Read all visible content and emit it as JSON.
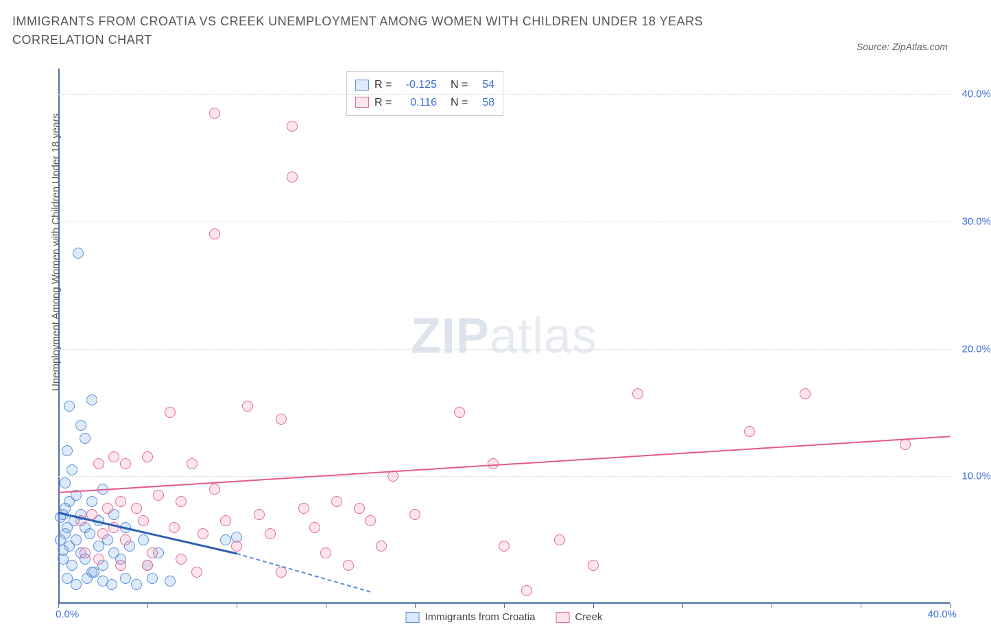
{
  "title": "IMMIGRANTS FROM CROATIA VS CREEK UNEMPLOYMENT AMONG WOMEN WITH CHILDREN UNDER 18 YEARS CORRELATION CHART",
  "source": "Source: ZipAtlas.com",
  "y_axis_label": "Unemployment Among Women with Children Under 18 years",
  "watermark_bold": "ZIP",
  "watermark_rest": "atlas",
  "chart": {
    "type": "scatter",
    "xlim": [
      0,
      40
    ],
    "ylim": [
      0,
      42
    ],
    "y_ticks": [
      10,
      20,
      30,
      40
    ],
    "y_tick_labels": [
      "10.0%",
      "20.0%",
      "30.0%",
      "40.0%"
    ],
    "x_tick_positions": [
      0,
      4,
      8,
      12,
      16,
      20,
      24,
      28,
      32,
      36,
      40
    ],
    "x_origin_label": "0.0%",
    "x_max_label": "40.0%",
    "grid_color": "#dddddd",
    "axis_color": "#4a6fa5",
    "background_color": "#ffffff",
    "marker_radius": 8,
    "marker_stroke_width": 1.5,
    "series": [
      {
        "name": "Immigrants from Croatia",
        "fill": "rgba(120,170,230,0.25)",
        "stroke": "#5a8fd6",
        "trend_color": "#2c5fb3",
        "trend_dash_color": "#5a8fd6",
        "trend_width": 3,
        "trend": {
          "x1": 0,
          "y1": 7.2,
          "x2": 8,
          "y2": 4.0,
          "dash_x2": 14,
          "dash_y2": 1.0
        },
        "R": "-0.125",
        "N": "54",
        "points": [
          [
            0.1,
            6.8
          ],
          [
            0.2,
            7.0
          ],
          [
            0.3,
            5.5
          ],
          [
            0.3,
            7.5
          ],
          [
            0.4,
            6.0
          ],
          [
            0.5,
            8.0
          ],
          [
            0.5,
            4.5
          ],
          [
            0.6,
            3.0
          ],
          [
            0.7,
            6.5
          ],
          [
            0.8,
            5.0
          ],
          [
            0.8,
            8.5
          ],
          [
            1.0,
            4.0
          ],
          [
            1.0,
            7.0
          ],
          [
            1.2,
            3.5
          ],
          [
            1.2,
            6.0
          ],
          [
            1.3,
            2.0
          ],
          [
            1.4,
            5.5
          ],
          [
            1.5,
            8.0
          ],
          [
            1.6,
            2.5
          ],
          [
            1.8,
            4.5
          ],
          [
            1.8,
            6.5
          ],
          [
            2.0,
            3.0
          ],
          [
            2.0,
            9.0
          ],
          [
            2.2,
            5.0
          ],
          [
            2.4,
            1.5
          ],
          [
            2.5,
            7.0
          ],
          [
            2.5,
            4.0
          ],
          [
            2.8,
            3.5
          ],
          [
            3.0,
            2.0
          ],
          [
            3.0,
            6.0
          ],
          [
            3.2,
            4.5
          ],
          [
            3.5,
            1.5
          ],
          [
            3.8,
            5.0
          ],
          [
            4.0,
            3.0
          ],
          [
            4.2,
            2.0
          ],
          [
            4.5,
            4.0
          ],
          [
            0.3,
            9.5
          ],
          [
            0.6,
            10.5
          ],
          [
            0.4,
            12.0
          ],
          [
            1.0,
            14.0
          ],
          [
            0.5,
            15.5
          ],
          [
            1.2,
            13.0
          ],
          [
            1.5,
            16.0
          ],
          [
            0.2,
            3.5
          ],
          [
            0.4,
            2.0
          ],
          [
            0.8,
            1.5
          ],
          [
            1.5,
            2.5
          ],
          [
            2.0,
            1.8
          ],
          [
            5.0,
            1.8
          ],
          [
            0.9,
            27.5
          ],
          [
            0.1,
            5.0
          ],
          [
            0.2,
            4.2
          ],
          [
            7.5,
            5.0
          ],
          [
            8.0,
            5.2
          ]
        ]
      },
      {
        "name": "Creek",
        "fill": "rgba(240,140,170,0.22)",
        "stroke": "#e06a9a",
        "trend_color": "#e35a8c",
        "trend_width": 2.5,
        "trend": {
          "x1": 0,
          "y1": 8.8,
          "x2": 40,
          "y2": 13.2
        },
        "R": "0.116",
        "N": "58",
        "points": [
          [
            1.0,
            6.5
          ],
          [
            1.5,
            7.0
          ],
          [
            1.8,
            11.0
          ],
          [
            2.0,
            5.5
          ],
          [
            2.2,
            7.5
          ],
          [
            2.5,
            6.0
          ],
          [
            2.5,
            11.5
          ],
          [
            2.8,
            8.0
          ],
          [
            3.0,
            11.0
          ],
          [
            3.0,
            5.0
          ],
          [
            3.5,
            7.5
          ],
          [
            3.8,
            6.5
          ],
          [
            4.0,
            11.5
          ],
          [
            4.2,
            4.0
          ],
          [
            4.5,
            8.5
          ],
          [
            5.0,
            15.0
          ],
          [
            5.2,
            6.0
          ],
          [
            5.5,
            3.5
          ],
          [
            6.0,
            11.0
          ],
          [
            6.2,
            2.5
          ],
          [
            6.5,
            5.5
          ],
          [
            7.0,
            9.0
          ],
          [
            7.0,
            38.5
          ],
          [
            7.0,
            29.0
          ],
          [
            7.5,
            6.5
          ],
          [
            8.0,
            4.5
          ],
          [
            8.5,
            15.5
          ],
          [
            9.0,
            7.0
          ],
          [
            9.5,
            5.5
          ],
          [
            10.0,
            14.5
          ],
          [
            10.0,
            2.5
          ],
          [
            10.5,
            37.5
          ],
          [
            10.5,
            33.5
          ],
          [
            11.0,
            7.5
          ],
          [
            11.5,
            6.0
          ],
          [
            12.0,
            4.0
          ],
          [
            12.5,
            8.0
          ],
          [
            13.0,
            3.0
          ],
          [
            13.5,
            7.5
          ],
          [
            14.0,
            6.5
          ],
          [
            14.5,
            4.5
          ],
          [
            15.0,
            10.0
          ],
          [
            16.0,
            7.0
          ],
          [
            18.0,
            15.0
          ],
          [
            19.5,
            11.0
          ],
          [
            20.0,
            4.5
          ],
          [
            21.0,
            1.0
          ],
          [
            22.5,
            5.0
          ],
          [
            24.0,
            3.0
          ],
          [
            26.0,
            16.5
          ],
          [
            31.0,
            13.5
          ],
          [
            33.5,
            16.5
          ],
          [
            38.0,
            12.5
          ],
          [
            1.2,
            4.0
          ],
          [
            1.8,
            3.5
          ],
          [
            2.8,
            3.0
          ],
          [
            4.0,
            3.0
          ],
          [
            5.5,
            8.0
          ]
        ]
      }
    ]
  },
  "stats_labels": {
    "R": "R =",
    "N": "N ="
  },
  "legend": {
    "series1": "Immigrants from Croatia",
    "series2": "Creek"
  }
}
